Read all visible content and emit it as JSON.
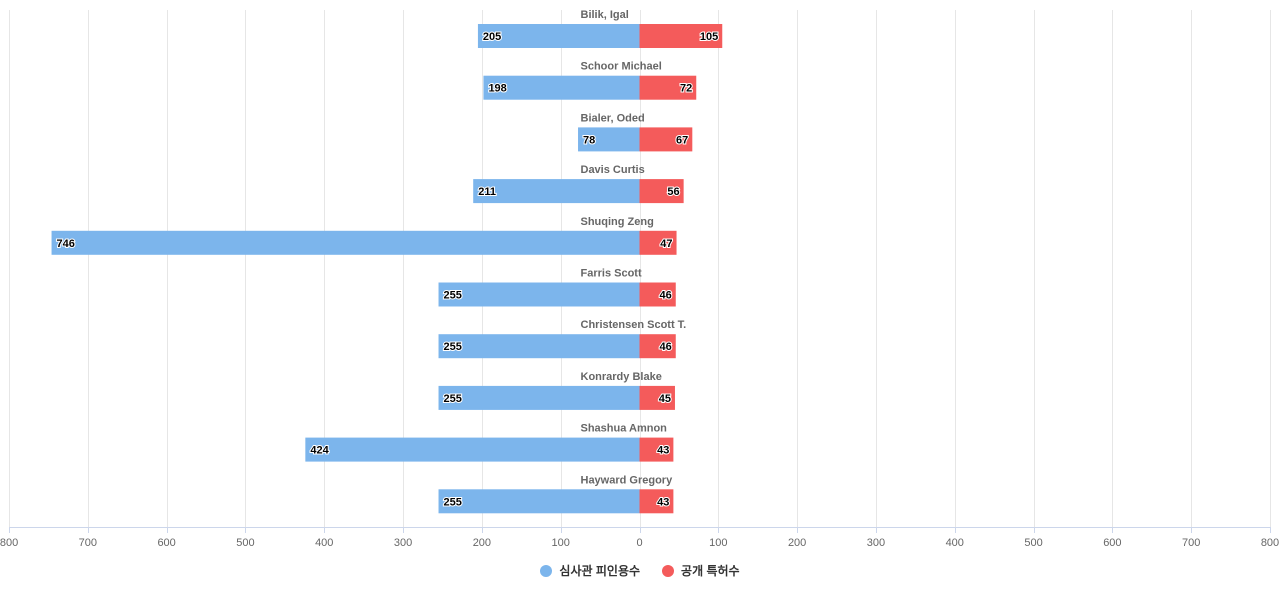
{
  "chart_data": {
    "type": "bar",
    "orientation": "horizontal-diverging",
    "categories": [
      "Bilik, Igal",
      "Schoor Michael",
      "Bialer, Oded",
      "Davis Curtis",
      "Shuqing Zeng",
      "Farris Scott",
      "Christensen Scott T.",
      "Konrardy Blake",
      "Shashua Amnon",
      "Hayward Gregory"
    ],
    "series": [
      {
        "name": "심사관 피인용수",
        "color": "#7cb5ec",
        "direction": "left",
        "values": [
          205,
          198,
          78,
          211,
          746,
          255,
          255,
          255,
          424,
          255
        ]
      },
      {
        "name": "공개 특허수",
        "color": "#f45b5b",
        "direction": "right",
        "values": [
          105,
          72,
          67,
          56,
          47,
          46,
          46,
          45,
          43,
          43
        ]
      }
    ],
    "xlim": [
      -800,
      800
    ],
    "xticks": [
      -800,
      -700,
      -600,
      -500,
      -400,
      -300,
      -200,
      -100,
      0,
      100,
      200,
      300,
      400,
      500,
      600,
      700,
      800
    ],
    "tick_labels": [
      "800",
      "700",
      "600",
      "500",
      "400",
      "300",
      "200",
      "100",
      "0",
      "100",
      "200",
      "300",
      "400",
      "500",
      "600",
      "700",
      "800"
    ],
    "grid": true,
    "legend_position": "bottom-center",
    "title": "",
    "xlabel": "",
    "ylabel": ""
  }
}
